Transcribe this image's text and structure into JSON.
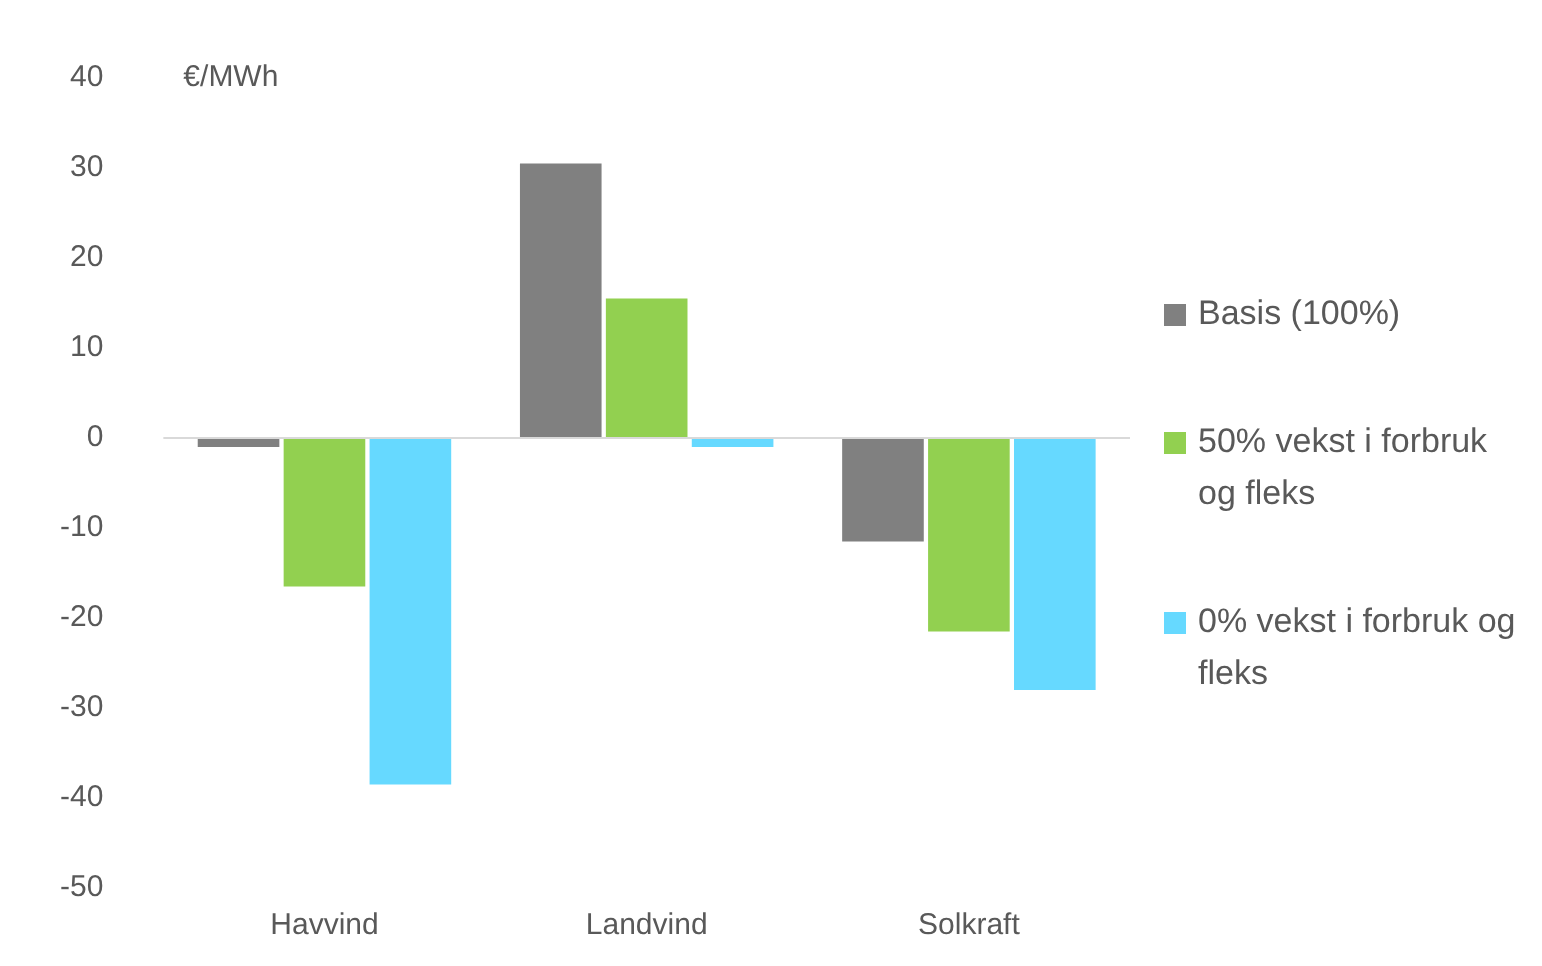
{
  "chart_data": {
    "type": "bar",
    "ylabel": "€/MWh",
    "categories": [
      "Havvind",
      "Landvind",
      "Solkraft"
    ],
    "series": [
      {
        "name": "Basis (100%)",
        "color": "#808080",
        "values": [
          -1,
          30.5,
          -11.5
        ]
      },
      {
        "name": "50% vekst i forbruk og fleks",
        "color": "#92d050",
        "values": [
          -16.5,
          15.5,
          -21.5
        ]
      },
      {
        "name": "0% vekst i forbruk og fleks",
        "color": "#66d9ff",
        "values": [
          -38.5,
          -1,
          -28
        ]
      }
    ],
    "ylim": [
      -50,
      40
    ],
    "yticks": [
      -50,
      -40,
      -30,
      -20,
      -10,
      0,
      10,
      20,
      30,
      40
    ],
    "ref_lines": [
      {
        "axis": "y",
        "value": 0,
        "color": "#d9d9d9"
      }
    ],
    "grid": false,
    "legend": "right"
  }
}
